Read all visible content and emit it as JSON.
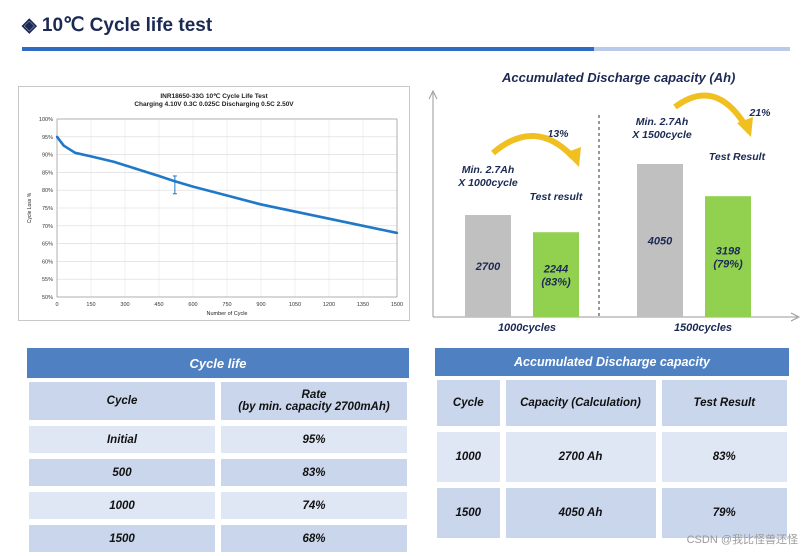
{
  "page": {
    "title": "10℃ Cycle life test",
    "watermark": "CSDN @我比怪兽还怪"
  },
  "colors": {
    "accent": "#2f6bc4",
    "gray_bar": "#c0c0c0",
    "green_bar": "#92d050",
    "line": "#1f78c8",
    "table_head": "#4f80c2"
  },
  "chart_data": [
    {
      "type": "line",
      "title": "INR18650-33G 10℃ Cycle Life Test",
      "subtitle": "Charging 4.10V 0.3C 0.025C Discharging 0.5C 2.50V",
      "xlabel": "Number of Cycle",
      "ylabel": "Cycle Loss %",
      "xlim": [
        0,
        1500
      ],
      "ylim": [
        50,
        100
      ],
      "xticks": [
        0,
        150,
        300,
        450,
        600,
        750,
        900,
        1050,
        1200,
        1350,
        1500
      ],
      "yticks": [
        50,
        55,
        60,
        65,
        70,
        75,
        80,
        85,
        90,
        95,
        100
      ],
      "ytick_labels": [
        "50%",
        "55%",
        "60%",
        "65%",
        "70%",
        "75%",
        "80%",
        "85%",
        "90%",
        "95%",
        "100%"
      ],
      "grid": true,
      "series": [
        {
          "name": "Cycle Loss",
          "x": [
            0,
            30,
            80,
            150,
            250,
            350,
            450,
            520,
            600,
            750,
            900,
            1050,
            1200,
            1350,
            1500
          ],
          "y": [
            95,
            92.5,
            90.5,
            89.5,
            88,
            86,
            84,
            82.5,
            81,
            78.5,
            76,
            74,
            72,
            70,
            68
          ]
        }
      ],
      "error_bar": {
        "x": 520,
        "ymin": 79,
        "ymax": 84
      }
    },
    {
      "type": "bar",
      "title": "Accumulated Discharge capacity (Ah)",
      "categories": [
        "1000cycles",
        "1500cycles"
      ],
      "series": [
        {
          "name": "Min. capacity",
          "values": [
            2700,
            4050
          ],
          "labels": [
            "2700",
            "4050"
          ],
          "color": "#c0c0c0"
        },
        {
          "name": "Test result",
          "values": [
            2244,
            3198
          ],
          "labels": [
            "2244\n(83%)",
            "3198\n(79%)"
          ],
          "color": "#92d050"
        }
      ],
      "annotations": [
        {
          "text": "Min. 2.7Ah\nX 1000cycle"
        },
        {
          "text": "Test result"
        },
        {
          "text": "13%"
        },
        {
          "text": "Min. 2.7Ah\nX 1500cycle"
        },
        {
          "text": "Test Result"
        },
        {
          "text": "21%"
        }
      ]
    }
  ],
  "cycle_table": {
    "title": "Cycle life",
    "headers": [
      "Cycle",
      "Rate\n(by min. capacity 2700mAh)"
    ],
    "rows": [
      [
        "Initial",
        "95%"
      ],
      [
        "500",
        "83%"
      ],
      [
        "1000",
        "74%"
      ],
      [
        "1500",
        "68%"
      ]
    ]
  },
  "capacity_table": {
    "title": "Accumulated Discharge capacity",
    "headers": [
      "Cycle",
      "Capacity (Calculation)",
      "Test Result"
    ],
    "rows": [
      [
        "1000",
        "2700 Ah",
        "83%"
      ],
      [
        "1500",
        "4050 Ah",
        "79%"
      ]
    ]
  }
}
